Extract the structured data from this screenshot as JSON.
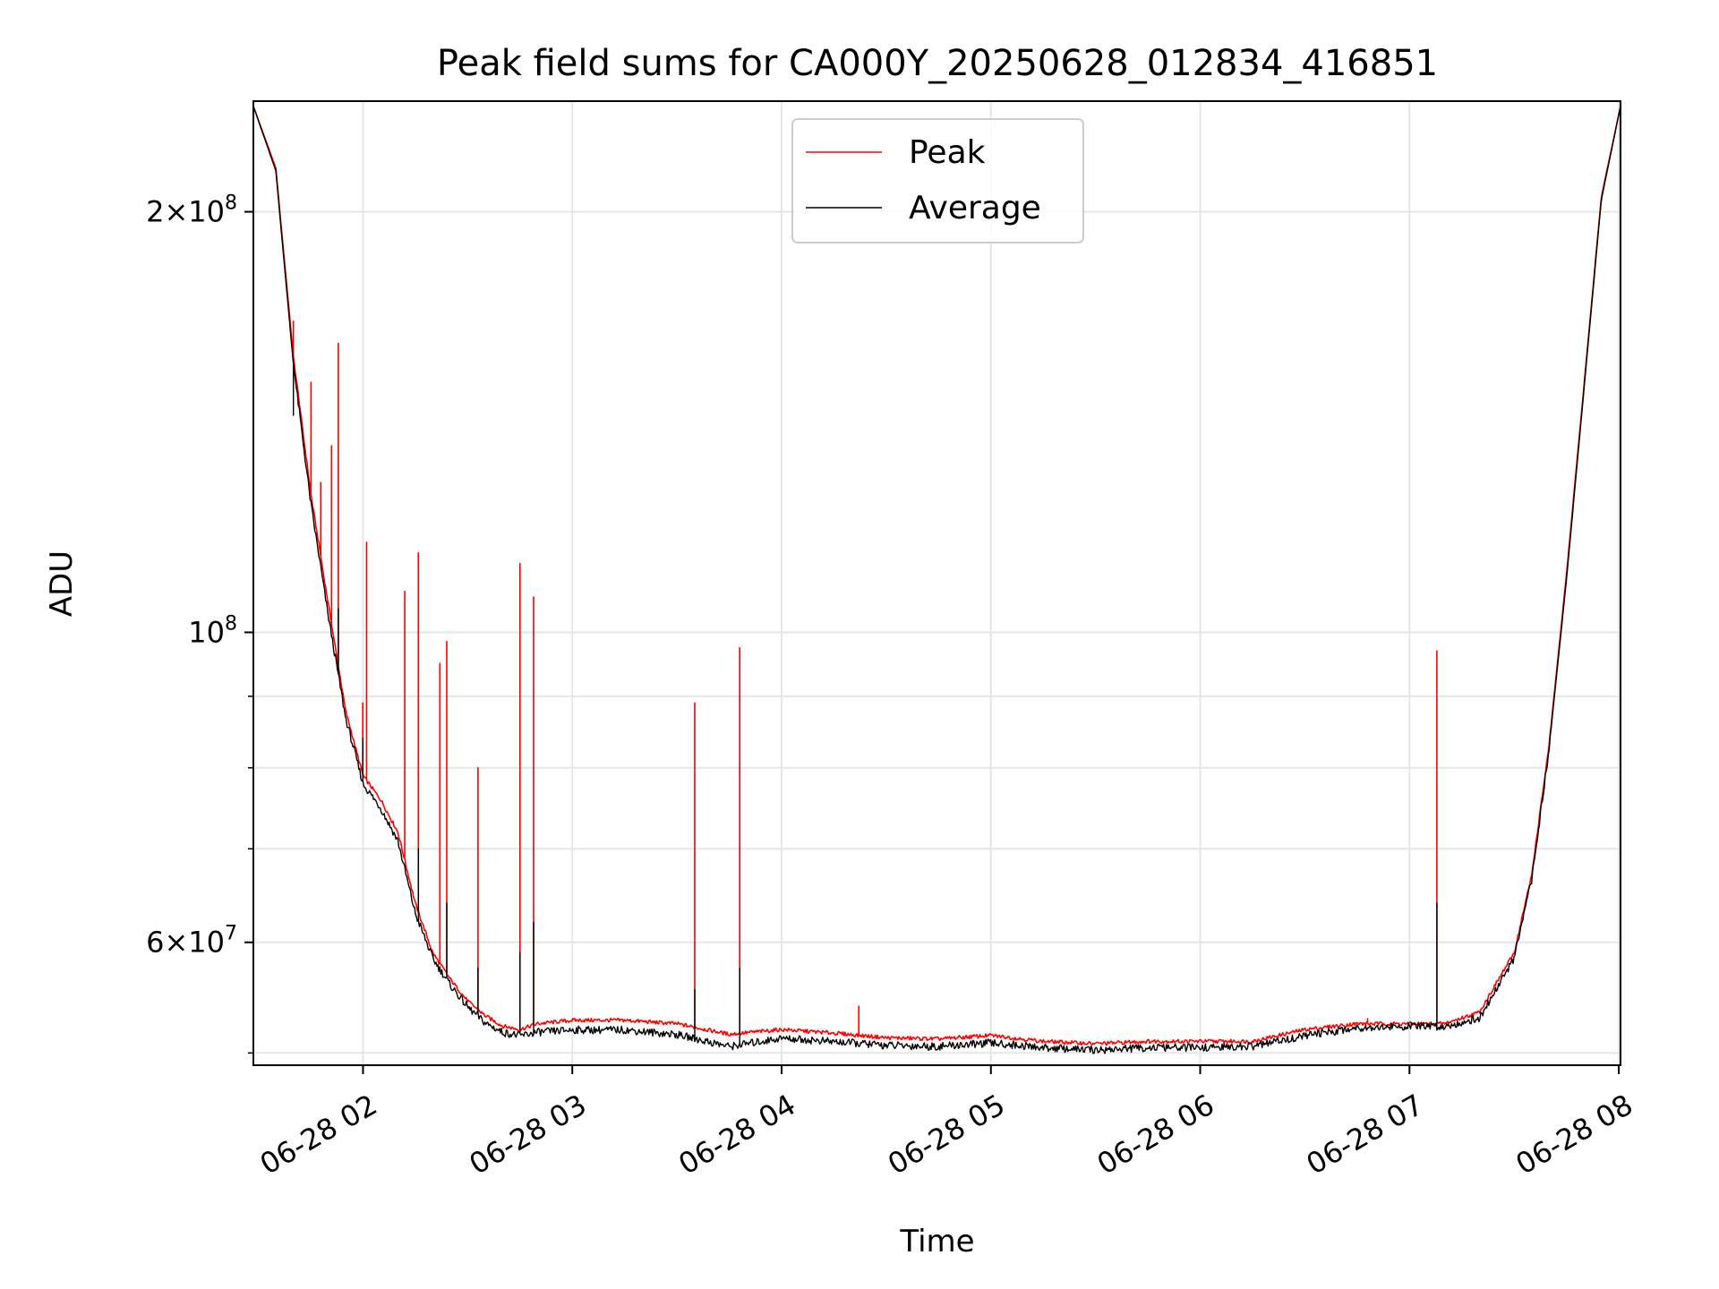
{
  "chart_data": {
    "type": "line",
    "title": "Peak field sums for CA000Y_20250628_012834_416851",
    "xlabel": "Time",
    "ylabel": "ADU",
    "x_axis": {
      "kind": "time",
      "range": [
        "06-28 01:28:34",
        "06-28 08:00:30"
      ],
      "tick_labels": [
        "06-28 02",
        "06-28 03",
        "06-28 04",
        "06-28 05",
        "06-28 06",
        "06-28 07",
        "06-28 08"
      ]
    },
    "y_axis": {
      "scale": "log",
      "range": [
        49000000,
        240000000
      ],
      "major_ticks": [
        {
          "value": 100000000,
          "base": "10",
          "exp": "8"
        },
        {
          "value": 200000000,
          "mant": "2",
          "base": "10",
          "exp": "8"
        },
        {
          "value": 60000000,
          "mant": "6",
          "base": "10",
          "exp": "7"
        }
      ],
      "minor_ticks": [
        50000000,
        70000000,
        80000000,
        90000000
      ]
    },
    "grid": true,
    "legend_position": "top-center",
    "series": [
      {
        "name": "Peak",
        "color": "#ff0000",
        "x": [
          "06-28 01:28:34",
          "06-28 01:35",
          "06-28 01:40",
          "06-28 01:45",
          "06-28 01:50",
          "06-28 01:55",
          "06-28 02:00",
          "06-28 02:05",
          "06-28 02:10",
          "06-28 02:15",
          "06-28 02:20",
          "06-28 02:25",
          "06-28 02:30",
          "06-28 02:35",
          "06-28 02:40",
          "06-28 02:45",
          "06-28 02:50",
          "06-28 03:00",
          "06-28 03:15",
          "06-28 03:30",
          "06-28 03:45",
          "06-28 04:00",
          "06-28 04:15",
          "06-28 04:30",
          "06-28 04:45",
          "06-28 05:00",
          "06-28 05:15",
          "06-28 05:30",
          "06-28 05:45",
          "06-28 06:00",
          "06-28 06:15",
          "06-28 06:30",
          "06-28 06:45",
          "06-28 07:00",
          "06-28 07:10",
          "06-28 07:20",
          "06-28 07:30",
          "06-28 07:35",
          "06-28 07:40",
          "06-28 07:45",
          "06-28 07:50",
          "06-28 07:55",
          "06-28 08:00:30"
        ],
        "values": [
          238000000,
          215000000,
          158000000,
          126000000,
          105000000,
          88000000,
          79000000,
          76000000,
          72000000,
          64000000,
          59000000,
          56500000,
          54500000,
          53200000,
          52300000,
          52000000,
          52500000,
          52800000,
          52800000,
          52500000,
          51600000,
          52000000,
          51700000,
          51300000,
          51200000,
          51500000,
          51000000,
          50800000,
          51000000,
          51000000,
          51000000,
          52000000,
          52500000,
          52500000,
          52500000,
          53500000,
          59000000,
          67000000,
          83000000,
          110000000,
          150000000,
          205000000,
          238000000
        ],
        "spikes": [
          {
            "x": "06-28 01:40",
            "value": 167000000
          },
          {
            "x": "06-28 01:45",
            "value": 151000000
          },
          {
            "x": "06-28 01:48",
            "value": 128000000
          },
          {
            "x": "06-28 01:51",
            "value": 136000000
          },
          {
            "x": "06-28 01:53",
            "value": 161000000
          },
          {
            "x": "06-28 02:00",
            "value": 89000000
          },
          {
            "x": "06-28 02:01",
            "value": 116000000
          },
          {
            "x": "06-28 02:12",
            "value": 107000000
          },
          {
            "x": "06-28 02:16",
            "value": 114000000
          },
          {
            "x": "06-28 02:22",
            "value": 95000000
          },
          {
            "x": "06-28 02:24",
            "value": 98500000
          },
          {
            "x": "06-28 02:33",
            "value": 80000000
          },
          {
            "x": "06-28 02:45",
            "value": 112000000
          },
          {
            "x": "06-28 02:49",
            "value": 106000000
          },
          {
            "x": "06-28 03:35",
            "value": 89000000
          },
          {
            "x": "06-28 03:48",
            "value": 97500000
          },
          {
            "x": "06-28 04:22",
            "value": 54000000
          },
          {
            "x": "06-28 06:48",
            "value": 52900000
          },
          {
            "x": "06-28 07:08",
            "value": 97000000
          }
        ]
      },
      {
        "name": "Average",
        "color": "#000000",
        "x": [
          "06-28 01:28:34",
          "06-28 01:35",
          "06-28 01:40",
          "06-28 01:45",
          "06-28 01:50",
          "06-28 01:55",
          "06-28 02:00",
          "06-28 02:05",
          "06-28 02:10",
          "06-28 02:15",
          "06-28 02:20",
          "06-28 02:25",
          "06-28 02:30",
          "06-28 02:35",
          "06-28 02:40",
          "06-28 02:45",
          "06-28 02:50",
          "06-28 03:00",
          "06-28 03:15",
          "06-28 03:30",
          "06-28 03:45",
          "06-28 04:00",
          "06-28 04:15",
          "06-28 04:30",
          "06-28 04:45",
          "06-28 05:00",
          "06-28 05:15",
          "06-28 05:30",
          "06-28 05:45",
          "06-28 06:00",
          "06-28 06:15",
          "06-28 06:30",
          "06-28 06:45",
          "06-28 07:00",
          "06-28 07:10",
          "06-28 07:20",
          "06-28 07:30",
          "06-28 07:35",
          "06-28 07:40",
          "06-28 07:45",
          "06-28 07:50",
          "06-28 07:55",
          "06-28 08:00:30"
        ],
        "values": [
          238000000,
          214000000,
          156000000,
          124000000,
          103000000,
          87000000,
          78000000,
          75000000,
          71000000,
          63000000,
          58500000,
          56000000,
          54000000,
          52600000,
          51800000,
          51500000,
          51800000,
          52000000,
          52000000,
          51600000,
          50600000,
          51300000,
          51000000,
          50700000,
          50600000,
          50900000,
          50500000,
          50300000,
          50500000,
          50500000,
          50600000,
          51500000,
          52200000,
          52300000,
          52300000,
          53000000,
          58500000,
          66500000,
          82500000,
          109000000,
          149000000,
          204000000,
          238000000
        ],
        "spikes": [
          {
            "x": "06-28 01:40",
            "value": 143000000
          },
          {
            "x": "06-28 01:53",
            "value": 104000000
          },
          {
            "x": "06-28 02:00",
            "value": 84000000
          },
          {
            "x": "06-28 02:16",
            "value": 70000000
          },
          {
            "x": "06-28 02:24",
            "value": 64000000
          },
          {
            "x": "06-28 02:33",
            "value": 57500000
          },
          {
            "x": "06-28 02:45",
            "value": 59000000
          },
          {
            "x": "06-28 02:49",
            "value": 62000000
          },
          {
            "x": "06-28 03:35",
            "value": 55500000
          },
          {
            "x": "06-28 03:48",
            "value": 57500000
          },
          {
            "x": "06-28 07:08",
            "value": 64000000
          }
        ]
      }
    ]
  }
}
